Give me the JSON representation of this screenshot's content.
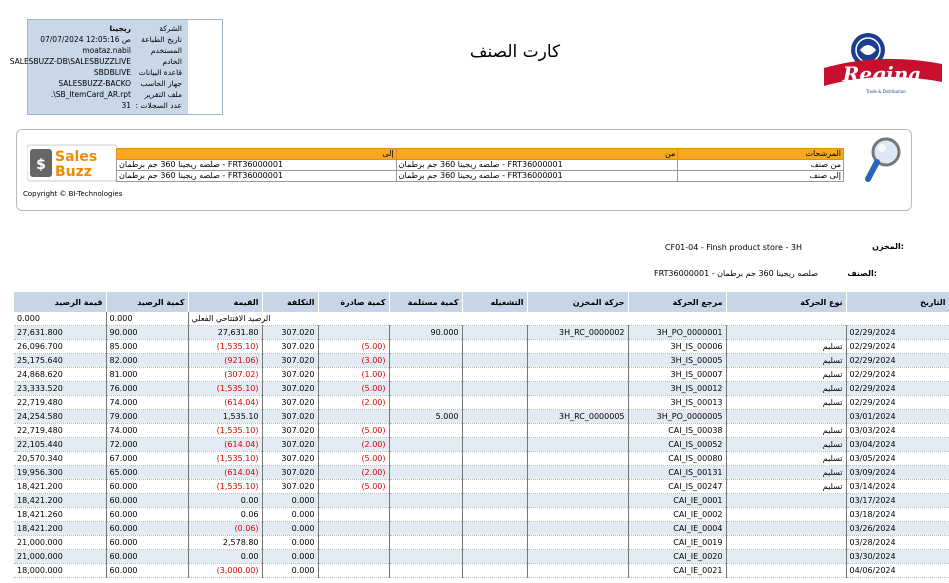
{
  "info_box": {
    "rows": [
      {
        "label": "الشركة",
        "value": "ريجينا"
      },
      {
        "label": "تاريخ الطباعة",
        "value": "07/07/2024 12:05:16 ص"
      },
      {
        "label": "المستخدم",
        "value": "moataz.nabil"
      },
      {
        "label": "الخادم",
        "value": "SALESBUZZ-DB\\SALESBUZZLIVE"
      },
      {
        "label": "قاعدة البيانات",
        "value": "SBDBLIVE"
      },
      {
        "label": "جهاز الحاسب",
        "value": "SALESBUZZ-BACKO"
      },
      {
        "label": "ملف التقرير",
        "value": ".\\SB_ItemCard_AR.rpt"
      },
      {
        "label": "عدد السجلات :",
        "value": "31"
      }
    ]
  },
  "report_title": "كارت الصنف",
  "logo": {
    "text": "Regina",
    "tagline": "Trade & Distribution",
    "brand_color": "#c8102e"
  },
  "filters": {
    "salesbuzz_logo": {
      "line1": "Sales",
      "line2": "Buzz"
    },
    "copyright": "Copyright © BI-Technologies",
    "header": {
      "filters": "المرشحات",
      "from": "من",
      "to": "إلى"
    },
    "rows": [
      {
        "name": "من صنف",
        "from": "صلصه ريجينا 360 جم برطمان - FRT36000001",
        "to": "صلصه ريجينا 360 جم برطمان - FRT36000001"
      },
      {
        "name": "إلى صنف",
        "from": "صلصه ريجينا 360 جم برطمان - FRT36000001",
        "to": "صلصه ريجينا 360 جم برطمان - FRT36000001"
      }
    ]
  },
  "store": {
    "label": "المخزن:",
    "value": "CF01-04 - Finsh product store - 3H"
  },
  "item": {
    "label": "الصنف:",
    "value": "FRT36000001 - صلصه ريجينا 360 جم برطمان"
  },
  "table": {
    "columns": [
      "التاريخ",
      "نوع الحركة",
      "مرجع الحركة",
      "حركة المخزن",
      "التشغيله",
      "كمية مستلمة",
      "كمية صادرة",
      "التكلفة",
      "القيمة",
      "كمية الرصيد",
      "قيمة الرصيد"
    ],
    "opening": {
      "label": "الرصيد الافتتاحي الفعلي",
      "qty": "0.000",
      "value": "0.000"
    },
    "rows": [
      {
        "date": "02/29/2024",
        "type": "",
        "ref": "3H_PO_0000001",
        "store_move": "3H_RC_0000002",
        "batch": "",
        "in": "90.000",
        "out": "",
        "cost": "307.020",
        "amount": "27,631.80",
        "neg": false,
        "bal_qty": "90.000",
        "bal_val": "27,631.800"
      },
      {
        "date": "02/29/2024",
        "type": "تسليم",
        "ref": "3H_IS_00006",
        "store_move": "",
        "batch": "",
        "in": "",
        "out": "(5.00)",
        "cost": "307.020",
        "amount": "(1,535.10)",
        "neg": true,
        "bal_qty": "85.000",
        "bal_val": "26,096.700"
      },
      {
        "date": "02/29/2024",
        "type": "تسليم",
        "ref": "3H_IS_00005",
        "store_move": "",
        "batch": "",
        "in": "",
        "out": "(3.00)",
        "cost": "307.020",
        "amount": "(921.06)",
        "neg": true,
        "bal_qty": "82.000",
        "bal_val": "25,175.640"
      },
      {
        "date": "02/29/2024",
        "type": "تسليم",
        "ref": "3H_IS_00007",
        "store_move": "",
        "batch": "",
        "in": "",
        "out": "(1.00)",
        "cost": "307.020",
        "amount": "(307.02)",
        "neg": true,
        "bal_qty": "81.000",
        "bal_val": "24,868.620"
      },
      {
        "date": "02/29/2024",
        "type": "تسليم",
        "ref": "3H_IS_00012",
        "store_move": "",
        "batch": "",
        "in": "",
        "out": "(5.00)",
        "cost": "307.020",
        "amount": "(1,535.10)",
        "neg": true,
        "bal_qty": "76.000",
        "bal_val": "23,333.520"
      },
      {
        "date": "02/29/2024",
        "type": "تسليم",
        "ref": "3H_IS_00013",
        "store_move": "",
        "batch": "",
        "in": "",
        "out": "(2.00)",
        "cost": "307.020",
        "amount": "(614.04)",
        "neg": true,
        "bal_qty": "74.000",
        "bal_val": "22,719.480"
      },
      {
        "date": "03/01/2024",
        "type": "",
        "ref": "3H_PO_0000005",
        "store_move": "3H_RC_0000005",
        "batch": "",
        "in": "5.000",
        "out": "",
        "cost": "307.020",
        "amount": "1,535.10",
        "neg": false,
        "bal_qty": "79.000",
        "bal_val": "24,254.580"
      },
      {
        "date": "03/03/2024",
        "type": "تسليم",
        "ref": "CAI_IS_00038",
        "store_move": "",
        "batch": "",
        "in": "",
        "out": "(5.00)",
        "cost": "307.020",
        "amount": "(1,535.10)",
        "neg": true,
        "bal_qty": "74.000",
        "bal_val": "22,719.480"
      },
      {
        "date": "03/04/2024",
        "type": "تسليم",
        "ref": "CAI_IS_00052",
        "store_move": "",
        "batch": "",
        "in": "",
        "out": "(2.00)",
        "cost": "307.020",
        "amount": "(614.04)",
        "neg": true,
        "bal_qty": "72.000",
        "bal_val": "22,105.440"
      },
      {
        "date": "03/05/2024",
        "type": "تسليم",
        "ref": "CAI_IS_00080",
        "store_move": "",
        "batch": "",
        "in": "",
        "out": "(5.00)",
        "cost": "307.020",
        "amount": "(1,535.10)",
        "neg": true,
        "bal_qty": "67.000",
        "bal_val": "20,570.340"
      },
      {
        "date": "03/09/2024",
        "type": "تسليم",
        "ref": "CAI_IS_00131",
        "store_move": "",
        "batch": "",
        "in": "",
        "out": "(2.00)",
        "cost": "307.020",
        "amount": "(614.04)",
        "neg": true,
        "bal_qty": "65.000",
        "bal_val": "19,956.300"
      },
      {
        "date": "03/14/2024",
        "type": "تسليم",
        "ref": "CAI_IS_00247",
        "store_move": "",
        "batch": "",
        "in": "",
        "out": "(5.00)",
        "cost": "307.020",
        "amount": "(1,535.10)",
        "neg": true,
        "bal_qty": "60.000",
        "bal_val": "18,421.200"
      },
      {
        "date": "03/17/2024",
        "type": "",
        "ref": "CAI_IE_0001",
        "store_move": "",
        "batch": "",
        "in": "",
        "out": "",
        "cost": "0.000",
        "amount": "0.00",
        "neg": false,
        "bal_qty": "60.000",
        "bal_val": "18,421.200"
      },
      {
        "date": "03/18/2024",
        "type": "",
        "ref": "CAI_IE_0002",
        "store_move": "",
        "batch": "",
        "in": "",
        "out": "",
        "cost": "0.000",
        "amount": "0.06",
        "neg": false,
        "bal_qty": "60.000",
        "bal_val": "18,421.260"
      },
      {
        "date": "03/26/2024",
        "type": "",
        "ref": "CAI_IE_0004",
        "store_move": "",
        "batch": "",
        "in": "",
        "out": "",
        "cost": "0.000",
        "amount": "(0.06)",
        "neg": true,
        "bal_qty": "60.000",
        "bal_val": "18,421.200"
      },
      {
        "date": "03/28/2024",
        "type": "",
        "ref": "CAI_IE_0019",
        "store_move": "",
        "batch": "",
        "in": "",
        "out": "",
        "cost": "0.000",
        "amount": "2,578.80",
        "neg": false,
        "bal_qty": "60.000",
        "bal_val": "21,000.000"
      },
      {
        "date": "03/30/2024",
        "type": "",
        "ref": "CAI_IE_0020",
        "store_move": "",
        "batch": "",
        "in": "",
        "out": "",
        "cost": "0.000",
        "amount": "0.00",
        "neg": false,
        "bal_qty": "60.000",
        "bal_val": "21,000.000"
      },
      {
        "date": "04/06/2024",
        "type": "",
        "ref": "CAI_IE_0021",
        "store_move": "",
        "batch": "",
        "in": "",
        "out": "",
        "cost": "0.000",
        "amount": "(3,000.00)",
        "neg": true,
        "bal_qty": "60.000",
        "bal_val": "18,000.000"
      }
    ]
  }
}
